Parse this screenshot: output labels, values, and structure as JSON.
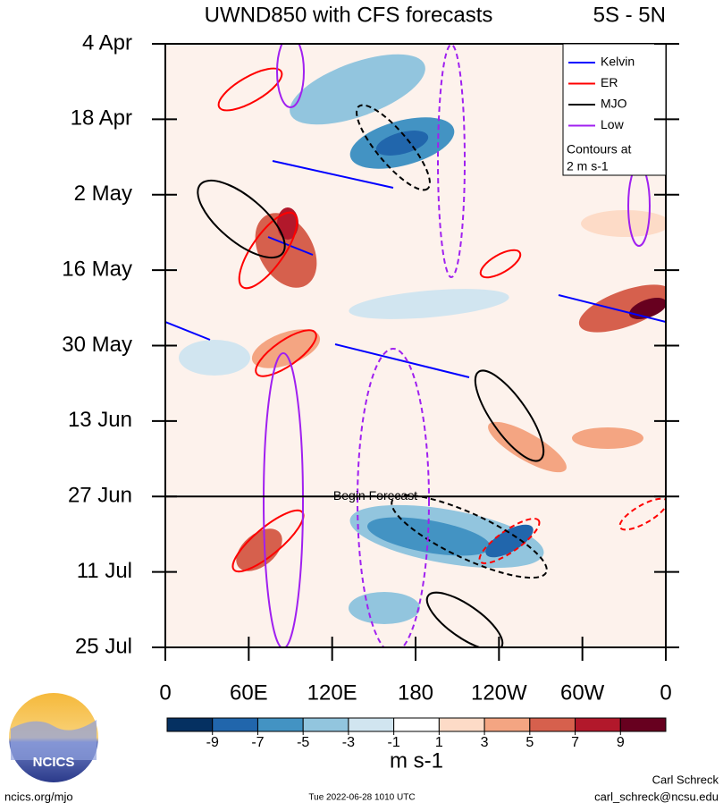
{
  "chart_data": {
    "type": "hovmoller",
    "title": "UWND850 with CFS forecasts",
    "subtitle": "5S - 5N",
    "xlim": [
      0,
      360
    ],
    "xticks": [
      0,
      {
        "value": 60,
        "label": "60E"
      },
      {
        "value": 120,
        "label": "120E"
      },
      180,
      {
        "value": 240,
        "label": "120W"
      },
      {
        "value": 300,
        "label": "60W"
      },
      {
        "value": 360,
        "label": "0"
      }
    ],
    "ylim": [
      0,
      112
    ],
    "yticks": [
      {
        "value": 0,
        "label": "4 Apr"
      },
      {
        "value": 14,
        "label": "18 Apr"
      },
      {
        "value": 28,
        "label": "2 May"
      },
      {
        "value": 42,
        "label": "16 May"
      },
      {
        "value": 56,
        "label": "30 May"
      },
      {
        "value": 70,
        "label": "13 Jun"
      },
      {
        "value": 84,
        "label": "27 Jun"
      },
      {
        "value": 98,
        "label": "11 Jul"
      },
      {
        "value": 112,
        "label": "25 Jul"
      }
    ],
    "series": [
      {
        "name": "Kelvin",
        "color": "#0000ff"
      },
      {
        "name": "ER",
        "color": "#ff0000"
      },
      {
        "name": "MJO",
        "color": "#000000"
      },
      {
        "name": "Low",
        "color": "#a020f0"
      }
    ],
    "legend_note": [
      "Contours at",
      "2 m s-1"
    ],
    "forecast_line": {
      "value": 84,
      "label": "Begin Forecast"
    },
    "colorbar": {
      "ticks": [
        -9,
        -7,
        -5,
        -3,
        -1,
        1,
        3,
        5,
        7,
        9
      ],
      "colors": [
        "#053061",
        "#2166ac",
        "#4393c3",
        "#92c5de",
        "#d1e5f0",
        "#ffffff",
        "#fddbc7",
        "#f4a582",
        "#d6604d",
        "#b2182b",
        "#67001f"
      ],
      "label": "m s-1"
    },
    "footer": {
      "logo": "NCICS",
      "url": "ncics.org/mjo",
      "timestamp": "Tue 2022-06-28 1010 UTC",
      "author": "Carl Schreck",
      "email": "carl_schreck@ncsu.edu"
    }
  }
}
